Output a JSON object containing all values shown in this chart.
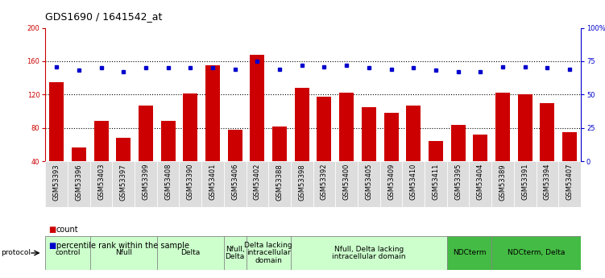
{
  "title": "GDS1690 / 1641542_at",
  "samples": [
    "GSM53393",
    "GSM53396",
    "GSM53403",
    "GSM53397",
    "GSM53399",
    "GSM53408",
    "GSM53390",
    "GSM53401",
    "GSM53406",
    "GSM53402",
    "GSM53388",
    "GSM53398",
    "GSM53392",
    "GSM53400",
    "GSM53405",
    "GSM53409",
    "GSM53410",
    "GSM53411",
    "GSM53395",
    "GSM53404",
    "GSM53389",
    "GSM53391",
    "GSM53394",
    "GSM53407"
  ],
  "counts": [
    135,
    57,
    88,
    68,
    107,
    88,
    121,
    155,
    78,
    168,
    82,
    128,
    117,
    122,
    105,
    98,
    107,
    64,
    84,
    72,
    122,
    120,
    110,
    75
  ],
  "percentiles": [
    71,
    68,
    70,
    67,
    70,
    70,
    70,
    70,
    69,
    75,
    69,
    72,
    71,
    72,
    70,
    69,
    70,
    68,
    67,
    67,
    71,
    71,
    70,
    69
  ],
  "ylim_left": [
    40,
    200
  ],
  "ylim_right": [
    0,
    100
  ],
  "yticks_left": [
    40,
    80,
    120,
    160,
    200
  ],
  "yticks_right": [
    0,
    25,
    50,
    75,
    100
  ],
  "bar_color": "#cc0000",
  "dot_color": "#0000cc",
  "protocol_groups": [
    {
      "label": "control",
      "start": 0,
      "end": 2,
      "color": "#ccffcc"
    },
    {
      "label": "Nfull",
      "start": 2,
      "end": 5,
      "color": "#ccffcc"
    },
    {
      "label": "Delta",
      "start": 5,
      "end": 8,
      "color": "#ccffcc"
    },
    {
      "label": "Nfull,\nDelta",
      "start": 8,
      "end": 9,
      "color": "#ccffcc"
    },
    {
      "label": "Delta lacking\nintracellular\ndomain",
      "start": 9,
      "end": 11,
      "color": "#ccffcc"
    },
    {
      "label": "Nfull, Delta lacking\nintracellular domain",
      "start": 11,
      "end": 18,
      "color": "#ccffcc"
    },
    {
      "label": "NDCterm",
      "start": 18,
      "end": 20,
      "color": "#44bb44"
    },
    {
      "label": "NDCterm, Delta",
      "start": 20,
      "end": 24,
      "color": "#44bb44"
    }
  ],
  "title_fontsize": 9,
  "tick_fontsize": 6,
  "proto_fontsize": 6.5
}
